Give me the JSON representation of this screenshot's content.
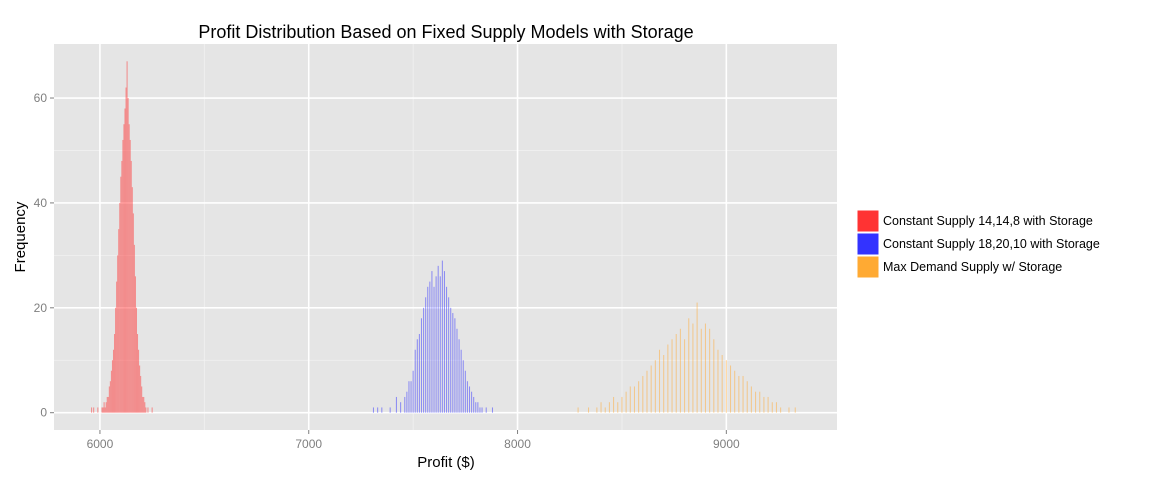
{
  "chart_data": {
    "type": "bar",
    "subtype": "overlaid histogram",
    "title": "Profit Distribution Based on Fixed Supply Models with Storage",
    "xlabel": "Profit ($)",
    "ylabel": "Frequency",
    "xlim": [
      5780,
      9530
    ],
    "ylim": [
      -3.3,
      70.3
    ],
    "xticks": [
      6000,
      7000,
      8000,
      9000
    ],
    "yticks": [
      0,
      20,
      40,
      60
    ],
    "grid": true,
    "legend_position": "right",
    "bin_width": 5,
    "bar_opacity": 0.5,
    "series": [
      {
        "name": "Constant Supply 14,14,8 with Storage",
        "color": "#ff3333",
        "x": [
          5960,
          5970,
          5990,
          6010,
          6015,
          6020,
          6025,
          6030,
          6035,
          6040,
          6045,
          6050,
          6055,
          6060,
          6065,
          6070,
          6075,
          6080,
          6085,
          6090,
          6095,
          6100,
          6105,
          6110,
          6115,
          6120,
          6125,
          6130,
          6135,
          6140,
          6145,
          6150,
          6155,
          6160,
          6165,
          6170,
          6175,
          6180,
          6185,
          6190,
          6195,
          6200,
          6205,
          6210,
          6215,
          6220,
          6230,
          6250
        ],
        "values": [
          1,
          1,
          1,
          1,
          1,
          2,
          1,
          2,
          3,
          3,
          5,
          6,
          8,
          10,
          12,
          15,
          20,
          25,
          30,
          35,
          40,
          45,
          48,
          52,
          55,
          58,
          62,
          67,
          60,
          55,
          52,
          48,
          43,
          38,
          32,
          26,
          20,
          15,
          12,
          9,
          7,
          5,
          3,
          3,
          2,
          1,
          1,
          1
        ]
      },
      {
        "name": "Constant Supply 18,20,10 with Storage",
        "color": "#3333ff",
        "x": [
          7310,
          7330,
          7350,
          7390,
          7420,
          7440,
          7460,
          7470,
          7480,
          7490,
          7500,
          7510,
          7520,
          7530,
          7540,
          7550,
          7560,
          7570,
          7580,
          7590,
          7600,
          7610,
          7620,
          7630,
          7640,
          7650,
          7660,
          7670,
          7680,
          7690,
          7700,
          7710,
          7720,
          7730,
          7740,
          7750,
          7760,
          7770,
          7780,
          7790,
          7800,
          7810,
          7820,
          7830,
          7850,
          7880
        ],
        "values": [
          1,
          1,
          1,
          1,
          3,
          2,
          3,
          4,
          6,
          6,
          8,
          12,
          14,
          15,
          18,
          20,
          22,
          24,
          25,
          27,
          24,
          26,
          28,
          26,
          29,
          27,
          24,
          22,
          20,
          19,
          18,
          16,
          14,
          12,
          10,
          8,
          6,
          5,
          4,
          3,
          2,
          2,
          1,
          1,
          1,
          1
        ]
      },
      {
        "name": "Max Demand Supply w/ Storage",
        "color": "#ffaa33",
        "x": [
          8290,
          8340,
          8380,
          8400,
          8420,
          8440,
          8460,
          8480,
          8500,
          8520,
          8540,
          8560,
          8580,
          8600,
          8620,
          8640,
          8660,
          8680,
          8700,
          8720,
          8740,
          8760,
          8780,
          8800,
          8820,
          8840,
          8860,
          8880,
          8900,
          8920,
          8940,
          8960,
          8980,
          9000,
          9020,
          9040,
          9060,
          9080,
          9100,
          9120,
          9140,
          9160,
          9180,
          9200,
          9220,
          9240,
          9260,
          9300,
          9330
        ],
        "values": [
          1,
          1,
          1,
          2,
          1,
          2,
          3,
          2,
          3,
          4,
          5,
          5,
          6,
          7,
          8,
          9,
          10,
          12,
          11,
          13,
          14,
          15,
          16,
          14,
          18,
          17,
          21,
          16,
          17,
          16,
          14,
          12,
          11,
          10,
          9,
          8,
          7,
          7,
          6,
          5,
          4,
          4,
          3,
          3,
          2,
          2,
          1,
          1,
          1
        ]
      }
    ]
  }
}
